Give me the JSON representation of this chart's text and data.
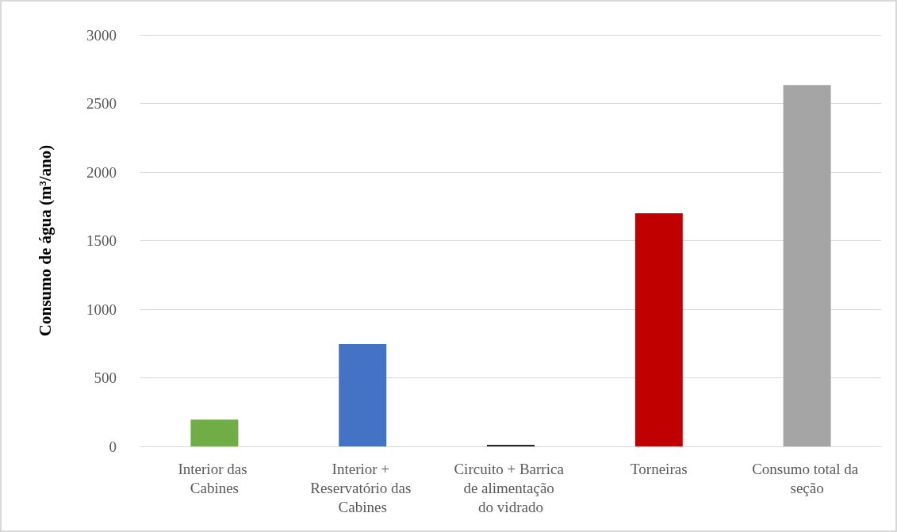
{
  "chart_data": {
    "type": "bar",
    "ylabel": "Consumo de água (m³/ano)",
    "categories": [
      "Interior das Cabines",
      "Interior + Reservatório das Cabines",
      "Circuito + Barrica de alimentação do vidrado",
      "Torneiras",
      "Consumo total da seção"
    ],
    "values": [
      195,
      745,
      10,
      1700,
      2635
    ],
    "colors": [
      "#70ad47",
      "#4472c4",
      "#000000",
      "#c00000",
      "#a5a5a5"
    ],
    "ylim": [
      0,
      3000
    ],
    "yticks": [
      0,
      500,
      1000,
      1500,
      2000,
      2500,
      3000
    ],
    "grid": "y"
  }
}
